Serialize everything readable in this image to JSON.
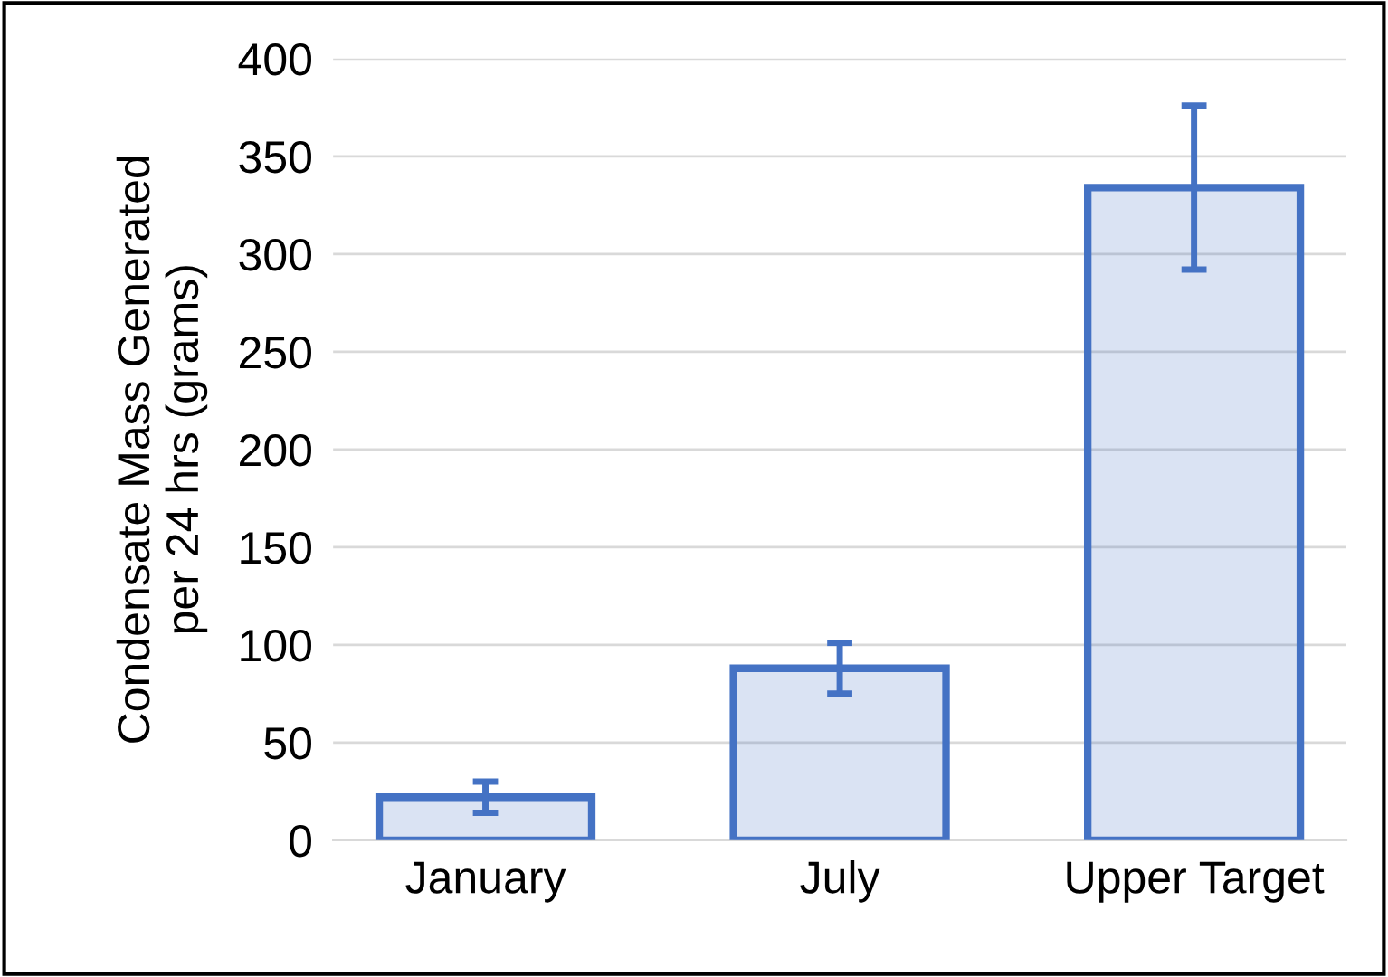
{
  "chart_data": {
    "type": "bar",
    "ylabel": "Condensate Mass Generated\nper 24 hrs (grams)",
    "categories": [
      "January",
      "July",
      "Upper Target"
    ],
    "values": [
      22,
      88,
      334
    ],
    "errors": [
      8,
      13,
      42
    ],
    "color": "#4472c4",
    "ylim": [
      0,
      400
    ],
    "yticks": [
      0,
      50,
      100,
      150,
      200,
      250,
      300,
      350,
      400
    ],
    "grid": "y"
  }
}
